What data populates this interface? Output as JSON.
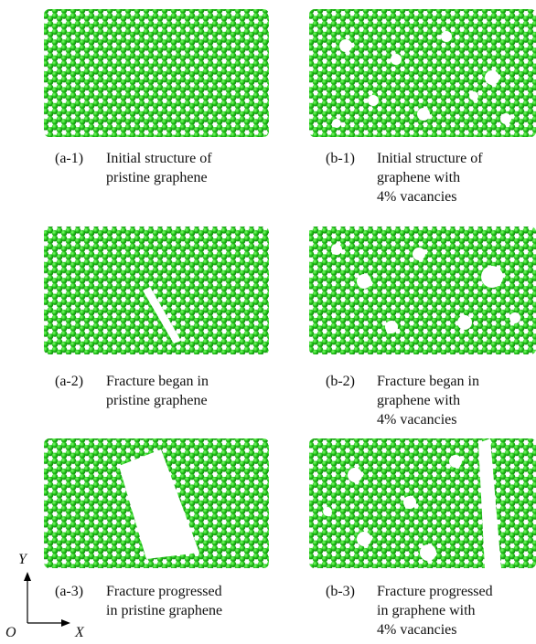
{
  "panels": [
    {
      "label": "(a-1)",
      "lines": [
        "Initial structure of",
        "pristine graphene"
      ]
    },
    {
      "label": "(b-1)",
      "lines": [
        "Initial structure of",
        "graphene with",
        "4% vacancies"
      ]
    },
    {
      "label": "(a-2)",
      "lines": [
        "Fracture began in",
        "pristine graphene"
      ]
    },
    {
      "label": "(b-2)",
      "lines": [
        "Fracture began in",
        "graphene with",
        "4% vacancies"
      ]
    },
    {
      "label": "(a-3)",
      "lines": [
        "Fracture progressed",
        "in pristine graphene"
      ]
    },
    {
      "label": "(b-3)",
      "lines": [
        "Fracture progressed",
        "in graphene with",
        "4% vacancies"
      ]
    }
  ],
  "axes": {
    "y": "Y",
    "origin": "O",
    "x": "X"
  }
}
